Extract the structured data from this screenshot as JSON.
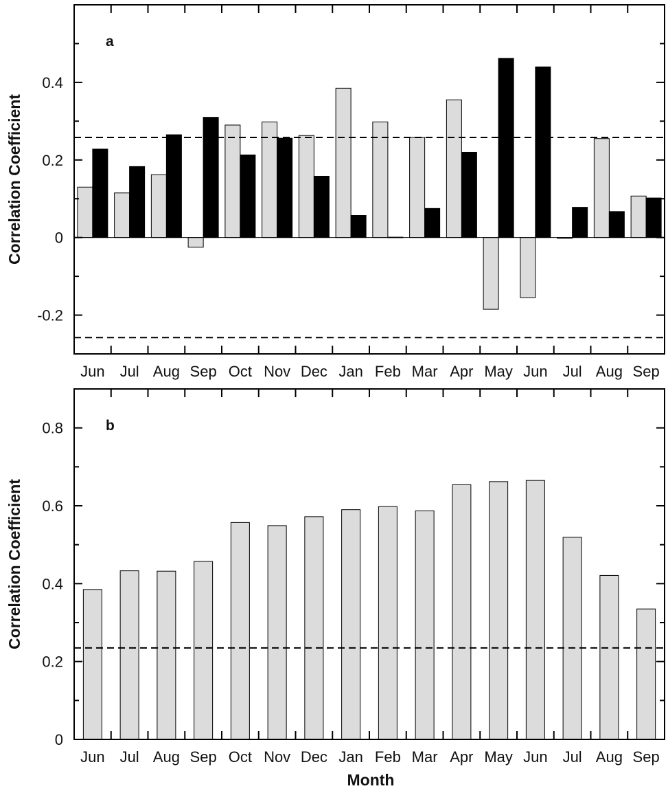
{
  "xlabel": "Month",
  "colors": {
    "light_bar": "#dcdcdc",
    "dark_bar": "#000000",
    "axis": "#000000"
  },
  "chart_data": [
    {
      "type": "bar",
      "panel_label": "a",
      "ylabel": "Correlation Coefficient",
      "xlabel": "",
      "ylim": [
        -0.3,
        0.6
      ],
      "yticks": [
        -0.2,
        0,
        0.2,
        0.4
      ],
      "ytick_labels": [
        "-0.2",
        "0",
        "0.2",
        "0.4"
      ],
      "categories": [
        "Jun",
        "Jul",
        "Aug",
        "Sep",
        "Oct",
        "Nov",
        "Dec",
        "Jan",
        "Feb",
        "Mar",
        "Apr",
        "May",
        "Jun",
        "Jul",
        "Aug",
        "Sep"
      ],
      "series": [
        {
          "color": "#dcdcdc",
          "values": [
            0.13,
            0.115,
            0.162,
            -0.025,
            0.29,
            0.298,
            0.263,
            0.385,
            0.298,
            0.258,
            0.355,
            -0.185,
            -0.155,
            -0.002,
            0.255,
            0.107
          ]
        },
        {
          "color": "#000000",
          "values": [
            0.228,
            0.183,
            0.265,
            0.31,
            0.213,
            0.256,
            0.158,
            0.057,
            0.001,
            0.075,
            0.22,
            0.462,
            0.44,
            0.078,
            0.067,
            0.102
          ]
        }
      ],
      "reference_lines": [
        0.258,
        -0.258
      ],
      "grid": false
    },
    {
      "type": "bar",
      "panel_label": "b",
      "ylabel": "Correlation Coefficient",
      "xlabel": "Month",
      "ylim": [
        0,
        0.9
      ],
      "yticks": [
        0,
        0.2,
        0.4,
        0.6,
        0.8
      ],
      "ytick_labels": [
        "0",
        "0.2",
        "0.4",
        "0.6",
        "0.8"
      ],
      "categories": [
        "Jun",
        "Jul",
        "Aug",
        "Sep",
        "Oct",
        "Nov",
        "Dec",
        "Jan",
        "Feb",
        "Mar",
        "Apr",
        "May",
        "Jun",
        "Jul",
        "Aug",
        "Sep"
      ],
      "series": [
        {
          "color": "#dcdcdc",
          "values": [
            0.385,
            0.433,
            0.432,
            0.457,
            0.557,
            0.549,
            0.572,
            0.59,
            0.598,
            0.587,
            0.654,
            0.662,
            0.665,
            0.519,
            0.421,
            0.335
          ]
        }
      ],
      "reference_lines": [
        0.235
      ],
      "grid": false
    }
  ]
}
